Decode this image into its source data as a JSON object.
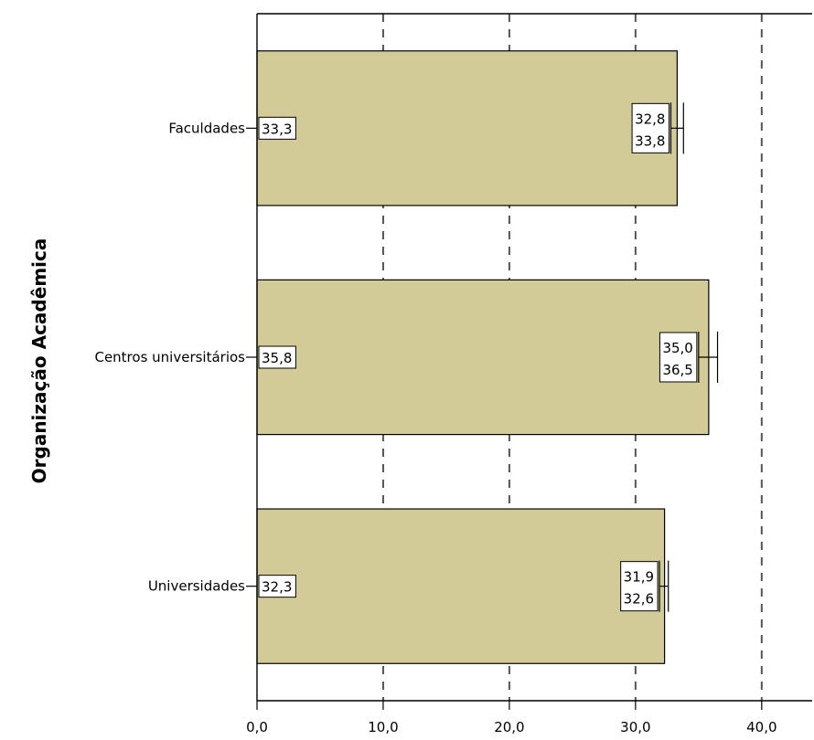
{
  "chart_data": {
    "type": "bar",
    "orientation": "horizontal",
    "ylabel": "Organização Acadêmica",
    "xlabel": "",
    "xlim": [
      0,
      44
    ],
    "xticks": [
      0,
      10,
      20,
      30,
      40
    ],
    "xtick_labels": [
      "0,0",
      "10,0",
      "20,0",
      "30,0",
      "40,0"
    ],
    "grid": "vertical dashed",
    "bar_color": "#d2cb98",
    "categories": [
      "Faculdades",
      "Centros universitários",
      "Universidades"
    ],
    "values": [
      33.3,
      35.8,
      32.3
    ],
    "value_labels": [
      "33,3",
      "35,8",
      "32,3"
    ],
    "ci_lower": [
      32.8,
      35.0,
      31.9
    ],
    "ci_upper": [
      33.8,
      36.5,
      32.6
    ],
    "ci_lower_labels": [
      "32,8",
      "35,0",
      "31,9"
    ],
    "ci_upper_labels": [
      "33,8",
      "36,5",
      "32,6"
    ]
  }
}
